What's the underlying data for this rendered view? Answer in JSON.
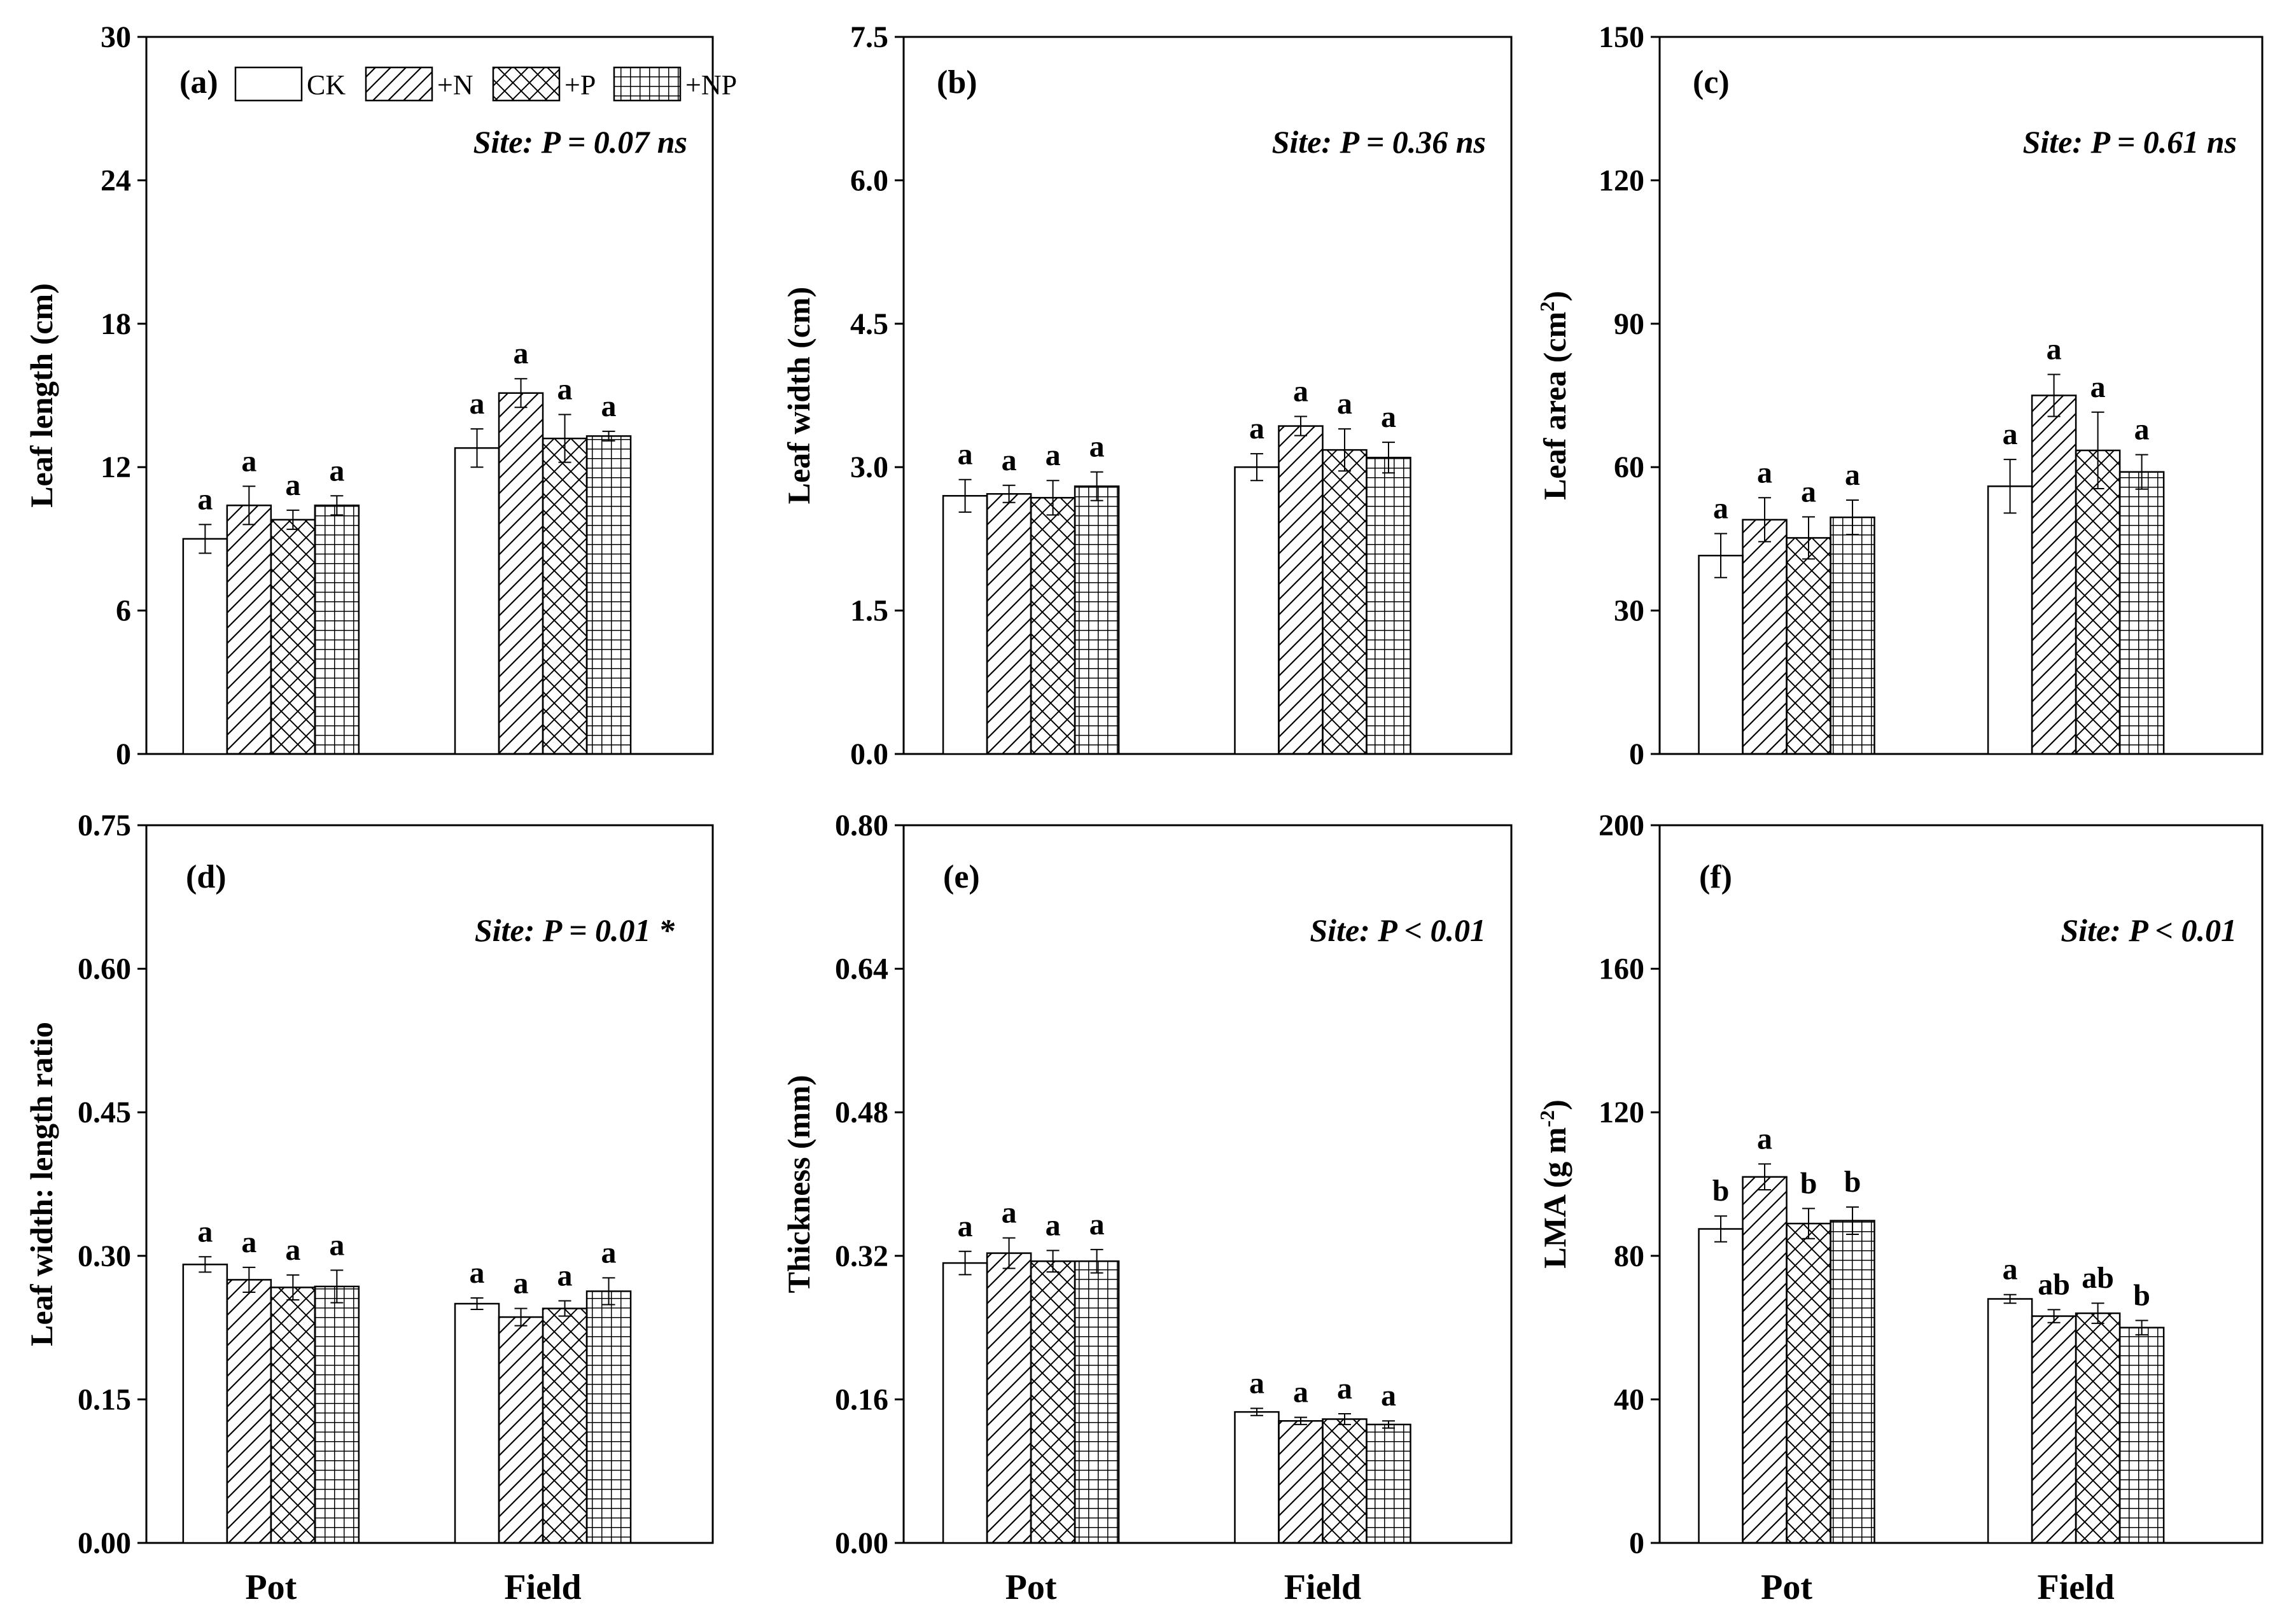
{
  "treatments": [
    "CK",
    "+N",
    "+P",
    "+NP"
  ],
  "chart_data": [
    {
      "type": "bar",
      "panel": "(a)",
      "ylabel": "Leaf length (cm)",
      "ylim": [
        0,
        30
      ],
      "yticks": [
        "0",
        "6",
        "12",
        "18",
        "24",
        "30"
      ],
      "categories": [
        "Pot",
        "Field"
      ],
      "site_text": "Site: P = 0.07 ns",
      "series": [
        {
          "name": "CK",
          "values": [
            9.0,
            12.8
          ],
          "errors": [
            0.6,
            0.8
          ]
        },
        {
          "name": "+N",
          "values": [
            10.4,
            15.1
          ],
          "errors": [
            0.8,
            0.6
          ]
        },
        {
          "name": "+P",
          "values": [
            9.8,
            13.2
          ],
          "errors": [
            0.4,
            1.0
          ]
        },
        {
          "name": "+NP",
          "values": [
            10.4,
            13.3
          ],
          "errors": [
            0.4,
            0.2
          ]
        }
      ],
      "letters": [
        [
          "a",
          "a"
        ],
        [
          "a",
          "a"
        ],
        [
          "a",
          "a"
        ],
        [
          "a",
          "a"
        ]
      ]
    },
    {
      "type": "bar",
      "panel": "(b)",
      "ylabel": "Leaf width (cm)",
      "ylim": [
        0,
        7.5
      ],
      "yticks": [
        "0.0",
        "1.5",
        "3.0",
        "4.5",
        "6.0",
        "7.5"
      ],
      "categories": [
        "Pot",
        "Field"
      ],
      "site_text": "Site: P = 0.36 ns",
      "series": [
        {
          "name": "CK",
          "values": [
            2.7,
            3.0
          ],
          "errors": [
            0.17,
            0.14
          ]
        },
        {
          "name": "+N",
          "values": [
            2.72,
            3.43
          ],
          "errors": [
            0.09,
            0.1
          ]
        },
        {
          "name": "+P",
          "values": [
            2.68,
            3.18
          ],
          "errors": [
            0.18,
            0.22
          ]
        },
        {
          "name": "+NP",
          "values": [
            2.8,
            3.1
          ],
          "errors": [
            0.15,
            0.16
          ]
        }
      ],
      "letters": [
        [
          "a",
          "a"
        ],
        [
          "a",
          "a"
        ],
        [
          "a",
          "a"
        ],
        [
          "a",
          "a"
        ]
      ]
    },
    {
      "type": "bar",
      "panel": "(c)",
      "ylabel": "Leaf area (cm",
      "ylabel_sup": "2",
      "ylabel_end": ")",
      "ylim": [
        0,
        150
      ],
      "yticks": [
        "0",
        "30",
        "60",
        "90",
        "120",
        "150"
      ],
      "categories": [
        "Pot",
        "Field"
      ],
      "site_text": "Site: P = 0.61 ns",
      "series": [
        {
          "name": "CK",
          "values": [
            41.5,
            56.0
          ],
          "errors": [
            4.6,
            5.6
          ]
        },
        {
          "name": "+N",
          "values": [
            49.0,
            75.0
          ],
          "errors": [
            4.6,
            4.4
          ]
        },
        {
          "name": "+P",
          "values": [
            45.2,
            63.5
          ],
          "errors": [
            4.4,
            8.0
          ]
        },
        {
          "name": "+NP",
          "values": [
            49.5,
            59.0
          ],
          "errors": [
            3.6,
            3.6
          ]
        }
      ],
      "letters": [
        [
          "a",
          "a"
        ],
        [
          "a",
          "a"
        ],
        [
          "a",
          "a"
        ],
        [
          "a",
          "a"
        ]
      ]
    },
    {
      "type": "bar",
      "panel": "(d)",
      "ylabel": "Leaf width: length ratio",
      "ylim": [
        0,
        0.75
      ],
      "yticks": [
        "0.00",
        "0.15",
        "0.30",
        "0.45",
        "0.60",
        "0.75"
      ],
      "categories": [
        "Pot",
        "Field"
      ],
      "site_text": "Site: P = 0.01 *",
      "series": [
        {
          "name": "CK",
          "values": [
            0.291,
            0.25
          ],
          "errors": [
            0.008,
            0.006
          ]
        },
        {
          "name": "+N",
          "values": [
            0.275,
            0.236
          ],
          "errors": [
            0.013,
            0.009
          ]
        },
        {
          "name": "+P",
          "values": [
            0.267,
            0.245
          ],
          "errors": [
            0.013,
            0.008
          ]
        },
        {
          "name": "+NP",
          "values": [
            0.268,
            0.263
          ],
          "errors": [
            0.017,
            0.014
          ]
        }
      ],
      "letters": [
        [
          "a",
          "a"
        ],
        [
          "a",
          "a"
        ],
        [
          "a",
          "a"
        ],
        [
          "a",
          "a"
        ]
      ]
    },
    {
      "type": "bar",
      "panel": "(e)",
      "ylabel": "Thickness (mm)",
      "ylim": [
        0,
        0.8
      ],
      "yticks": [
        "0.00",
        "0.16",
        "0.32",
        "0.48",
        "0.64",
        "0.80"
      ],
      "categories": [
        "Pot",
        "Field"
      ],
      "site_text": "Site: P < 0.01",
      "series": [
        {
          "name": "CK",
          "values": [
            0.312,
            0.146
          ],
          "errors": [
            0.013,
            0.004
          ]
        },
        {
          "name": "+N",
          "values": [
            0.323,
            0.136
          ],
          "errors": [
            0.017,
            0.004
          ]
        },
        {
          "name": "+P",
          "values": [
            0.314,
            0.138
          ],
          "errors": [
            0.012,
            0.006
          ]
        },
        {
          "name": "+NP",
          "values": [
            0.314,
            0.132
          ],
          "errors": [
            0.013,
            0.004
          ]
        }
      ],
      "letters": [
        [
          "a",
          "a"
        ],
        [
          "a",
          "a"
        ],
        [
          "a",
          "a"
        ],
        [
          "a",
          "a"
        ]
      ]
    },
    {
      "type": "bar",
      "panel": "(f)",
      "ylabel": "LMA (g m",
      "ylabel_sup": "-2",
      "ylabel_end": ")",
      "ylim": [
        0,
        200
      ],
      "yticks": [
        "0",
        "40",
        "80",
        "120",
        "160",
        "200"
      ],
      "categories": [
        "Pot",
        "Field"
      ],
      "site_text": "Site: P < 0.01",
      "series": [
        {
          "name": "CK",
          "values": [
            87.5,
            68.0
          ],
          "errors": [
            3.6,
            1.2
          ]
        },
        {
          "name": "+N",
          "values": [
            102.0,
            63.2
          ],
          "errors": [
            3.6,
            1.8
          ]
        },
        {
          "name": "+P",
          "values": [
            89.0,
            64.0
          ],
          "errors": [
            4.2,
            2.8
          ]
        },
        {
          "name": "+NP",
          "values": [
            89.8,
            60.0
          ],
          "errors": [
            3.8,
            2.0
          ]
        }
      ],
      "letters": [
        [
          "b",
          "a"
        ],
        [
          "a",
          "ab"
        ],
        [
          "b",
          "ab"
        ],
        [
          "b",
          "b"
        ]
      ]
    }
  ]
}
